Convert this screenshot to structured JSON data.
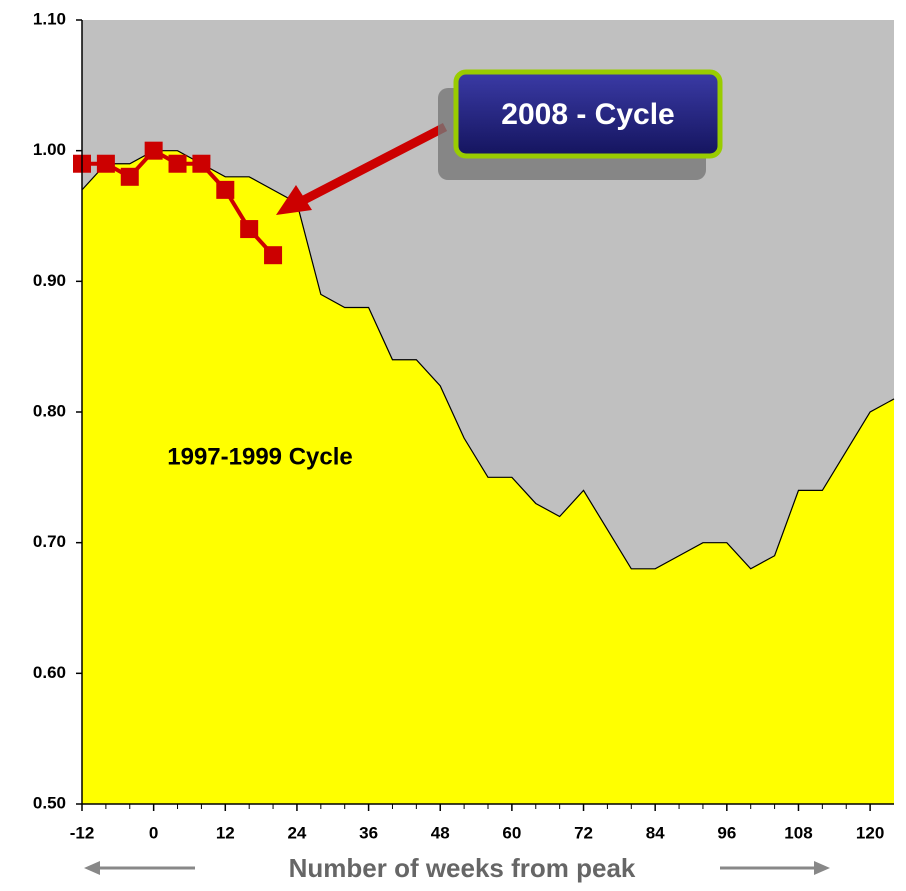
{
  "chart_data": {
    "type": "area",
    "xlabel": "Number of weeks from peak",
    "xlim": [
      -12,
      124
    ],
    "xticks": [
      -12,
      0,
      12,
      24,
      36,
      48,
      60,
      72,
      84,
      96,
      108,
      120
    ],
    "xminor_ticks": [
      -8,
      -4,
      4,
      8,
      16,
      20,
      28,
      32,
      40,
      44,
      52,
      56,
      64,
      68,
      76,
      80,
      88,
      92,
      100,
      104,
      112,
      116
    ],
    "ylim": [
      0.5,
      1.1
    ],
    "yticks": [
      {
        "value": 0.5,
        "label": "0.50"
      },
      {
        "value": 0.6,
        "label": "0.60"
      },
      {
        "value": 0.7,
        "label": "0.70"
      },
      {
        "value": 0.8,
        "label": "0.80"
      },
      {
        "value": 0.9,
        "label": "0.90"
      },
      {
        "value": 1.0,
        "label": "1.00"
      },
      {
        "value": 1.1,
        "label": "1.10"
      }
    ],
    "background": "#c0c0c0",
    "series": [
      {
        "name": "1997-1999 Cycle",
        "type": "area",
        "color": "#ffff00",
        "x": [
          -12,
          -8,
          -4,
          0,
          4,
          8,
          12,
          16,
          20,
          24,
          28,
          32,
          36,
          40,
          44,
          48,
          52,
          56,
          60,
          64,
          68,
          72,
          76,
          80,
          84,
          88,
          92,
          96,
          100,
          104,
          108,
          112,
          116,
          120,
          124
        ],
        "values": [
          0.97,
          0.99,
          0.99,
          1.0,
          1.0,
          0.99,
          0.98,
          0.98,
          0.97,
          0.96,
          0.89,
          0.88,
          0.88,
          0.84,
          0.84,
          0.82,
          0.78,
          0.75,
          0.75,
          0.73,
          0.72,
          0.74,
          0.71,
          0.68,
          0.68,
          0.69,
          0.7,
          0.7,
          0.68,
          0.69,
          0.74,
          0.74,
          0.77,
          0.8,
          0.81
        ]
      },
      {
        "name": "2008 - Cycle",
        "type": "line",
        "color": "#cc0000",
        "x": [
          -12,
          -8,
          -4,
          0,
          4,
          8,
          12,
          16,
          20
        ],
        "values": [
          0.99,
          0.99,
          0.98,
          1.0,
          0.99,
          0.99,
          0.97,
          0.94,
          0.92
        ]
      }
    ]
  }
}
